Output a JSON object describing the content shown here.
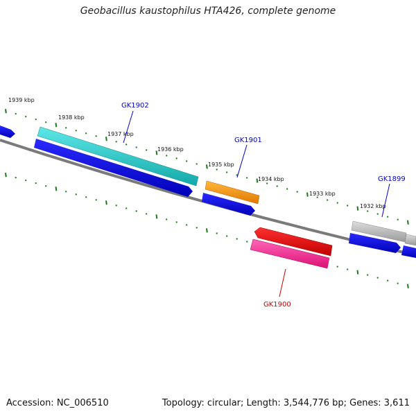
{
  "title": "Geobacillus kaustophilus HTA426, complete genome",
  "footer": {
    "accession": "Accession: NC_006510",
    "summary": "Topology: circular; Length: 3,544,776 bp; Genes: 3,611"
  },
  "ruler_labels": [
    "1939 kbp",
    "1938 kbp",
    "1937 kbp",
    "1936 kbp",
    "1935 kbp",
    "1934 kbp",
    "1933 kbp",
    "1932 kbp"
  ],
  "gene_labels": [
    {
      "id": "gk1902",
      "text": "GK1902",
      "color": "#0000cc"
    },
    {
      "id": "gk1901",
      "text": "GK1901",
      "color": "#0000cc"
    },
    {
      "id": "gk1899",
      "text": "GK1899",
      "color": "#0000cc"
    },
    {
      "id": "gk1900",
      "text": "GK1900",
      "color": "#cc0000"
    }
  ],
  "colors": {
    "backbone": "#777777",
    "tick": "#1a7a1a",
    "cds": "#0000ee",
    "teal": "#22cccc",
    "orange": "#ff9900",
    "gray": "#bbbbbb",
    "red": "#ee0000",
    "pink": "#ff3399"
  }
}
